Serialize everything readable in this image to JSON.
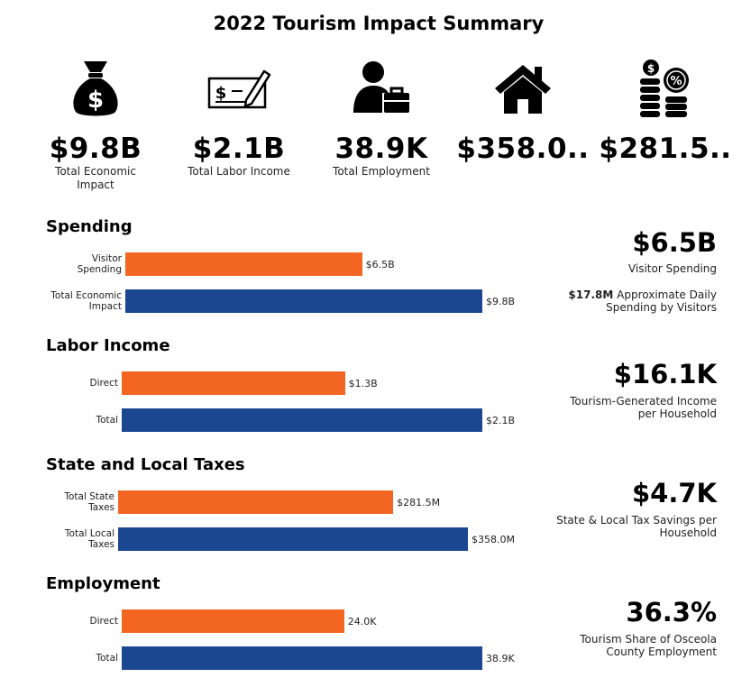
{
  "title": "2022 Tourism Impact Summary",
  "colors": {
    "direct": "#f26522",
    "total": "#1b4690"
  },
  "kpis": [
    {
      "icon": "money-bag-icon",
      "value": "$9.8B",
      "label": "Total Economic Impact"
    },
    {
      "icon": "check-pen-icon",
      "value": "$2.1B",
      "label": "Total Labor Income"
    },
    {
      "icon": "worker-briefcase-icon",
      "value": "38.9K",
      "label": "Total Employment"
    },
    {
      "icon": "house-icon",
      "value": "$358.0..",
      "label": ""
    },
    {
      "icon": "coins-percent-icon",
      "value": "$281.5..",
      "label": ""
    }
  ],
  "chart_data": [
    {
      "type": "bar",
      "orientation": "horizontal",
      "title": "Spending",
      "categories": [
        "Visitor Spending",
        "Total Economic Impact"
      ],
      "values": [
        6.5,
        9.8
      ],
      "unit": "billion USD",
      "value_labels": [
        "$6.5B",
        "$9.8B"
      ],
      "summary": {
        "value": "$6.5B",
        "label": "Visitor Spending",
        "note_bold": "$17.8M",
        "note": "Approximate Daily Spending by Visitors"
      }
    },
    {
      "type": "bar",
      "orientation": "horizontal",
      "title": "Labor Income",
      "categories": [
        "Direct",
        "Total"
      ],
      "values": [
        1.3,
        2.1
      ],
      "unit": "billion USD",
      "value_labels": [
        "$1.3B",
        "$2.1B"
      ],
      "summary": {
        "value": "$16.1K",
        "label": "Tourism-Generated Income per Household"
      }
    },
    {
      "type": "bar",
      "orientation": "horizontal",
      "title": "State and Local Taxes",
      "categories": [
        "Total State Taxes",
        "Total Local Taxes"
      ],
      "values": [
        281.5,
        358.0
      ],
      "unit": "million USD",
      "value_labels": [
        "$281.5M",
        "$358.0M"
      ],
      "summary": {
        "value": "$4.7K",
        "label": "State & Local Tax Savings per Household"
      }
    },
    {
      "type": "bar",
      "orientation": "horizontal",
      "title": "Employment",
      "categories": [
        "Direct",
        "Total"
      ],
      "values": [
        24.0,
        38.9
      ],
      "unit": "thousand jobs",
      "value_labels": [
        "24.0K",
        "38.9K"
      ],
      "summary": {
        "value": "36.3%",
        "label": "Tourism Share of Osceola County Employment"
      }
    }
  ]
}
